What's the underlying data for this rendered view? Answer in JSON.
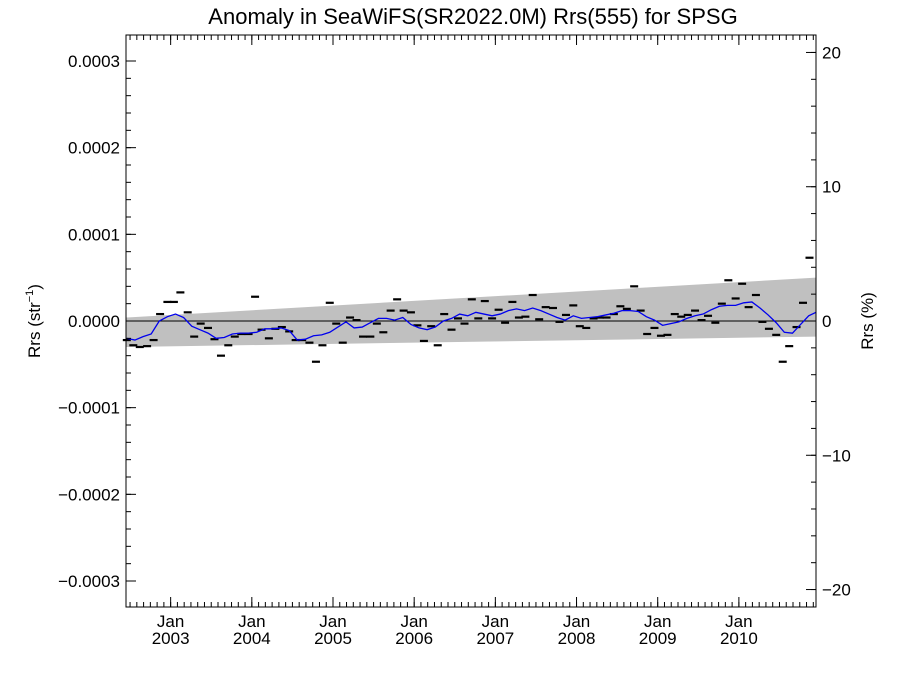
{
  "chart_data": {
    "type": "scatter",
    "title": "Anomaly in SeaWiFS(SR2022.0M) Rrs(555) for SPSG",
    "ylabel_left": {
      "base": "Rrs (str",
      "sup": "−1",
      "tail": ")"
    },
    "ylabel_right": "Rrs (%)",
    "xlim": [
      2002.45,
      2010.95
    ],
    "ylim_left": [
      -0.00033,
      0.00033
    ],
    "ylim_right": [
      -21.3,
      21.3
    ],
    "left_ticks": [
      {
        "value": 0.0003,
        "label": "0.0003"
      },
      {
        "value": 0.0002,
        "label": "0.0002"
      },
      {
        "value": 0.0001,
        "label": "0.0001"
      },
      {
        "value": 0.0,
        "label": "0.0000"
      },
      {
        "value": -0.0001,
        "label": "−0.0001"
      },
      {
        "value": -0.0002,
        "label": "−0.0002"
      },
      {
        "value": -0.0003,
        "label": "−0.0003"
      }
    ],
    "right_ticks": [
      {
        "value": 20,
        "label": "20"
      },
      {
        "value": 10,
        "label": "10"
      },
      {
        "value": 0,
        "label": "0"
      },
      {
        "value": -10,
        "label": "−10"
      },
      {
        "value": -20,
        "label": "−20"
      }
    ],
    "x_ticks": [
      {
        "value": 2003.0,
        "month": "Jan",
        "year": "2003"
      },
      {
        "value": 2004.0,
        "month": "Jan",
        "year": "2004"
      },
      {
        "value": 2005.0,
        "month": "Jan",
        "year": "2005"
      },
      {
        "value": 2006.0,
        "month": "Jan",
        "year": "2006"
      },
      {
        "value": 2007.0,
        "month": "Jan",
        "year": "2007"
      },
      {
        "value": 2008.0,
        "month": "Jan",
        "year": "2008"
      },
      {
        "value": 2009.0,
        "month": "Jan",
        "year": "2009"
      },
      {
        "value": 2010.0,
        "month": "Jan",
        "year": "2010"
      }
    ],
    "zero_line": 0.0,
    "uncertainty_band": {
      "upper": [
        [
          2002.45,
          4e-06
        ],
        [
          2010.95,
          5e-05
        ]
      ],
      "lower": [
        [
          2002.45,
          -3e-05
        ],
        [
          2010.95,
          -1.8e-05
        ]
      ]
    },
    "monthly_anomalies": [
      [
        2002.46,
        -2.2e-05
      ],
      [
        2002.54,
        -2.8e-05
      ],
      [
        2002.62,
        -3e-05
      ],
      [
        2002.71,
        -2.9e-05
      ],
      [
        2002.79,
        -2.2e-05
      ],
      [
        2002.87,
        8e-06
      ],
      [
        2002.96,
        2.2e-05
      ],
      [
        2003.04,
        2.2e-05
      ],
      [
        2003.12,
        3.3e-05
      ],
      [
        2003.21,
        1e-05
      ],
      [
        2003.29,
        -1.8e-05
      ],
      [
        2003.37,
        -3e-06
      ],
      [
        2003.46,
        -8e-06
      ],
      [
        2003.54,
        -2.1e-05
      ],
      [
        2003.62,
        -4e-05
      ],
      [
        2003.71,
        -2.8e-05
      ],
      [
        2003.79,
        -1.8e-05
      ],
      [
        2003.87,
        -1.5e-05
      ],
      [
        2003.96,
        -1.5e-05
      ],
      [
        2004.04,
        2.8e-05
      ],
      [
        2004.12,
        -1e-05
      ],
      [
        2004.21,
        -2e-05
      ],
      [
        2004.29,
        -9e-06
      ],
      [
        2004.37,
        -7e-06
      ],
      [
        2004.46,
        -1.2e-05
      ],
      [
        2004.54,
        -2.2e-05
      ],
      [
        2004.62,
        -2.2e-05
      ],
      [
        2004.71,
        -2.5e-05
      ],
      [
        2004.79,
        -4.7e-05
      ],
      [
        2004.87,
        -2.8e-05
      ],
      [
        2004.96,
        2.1e-05
      ],
      [
        2005.04,
        -3e-06
      ],
      [
        2005.12,
        -2.5e-05
      ],
      [
        2005.21,
        4e-06
      ],
      [
        2005.29,
        1e-06
      ],
      [
        2005.37,
        -1.8e-05
      ],
      [
        2005.46,
        -1.8e-05
      ],
      [
        2005.54,
        -3e-06
      ],
      [
        2005.62,
        -1.3e-05
      ],
      [
        2005.71,
        1.2e-05
      ],
      [
        2005.79,
        2.5e-05
      ],
      [
        2005.87,
        1.2e-05
      ],
      [
        2005.96,
        1e-05
      ],
      [
        2006.04,
        -5e-06
      ],
      [
        2006.12,
        -2.3e-05
      ],
      [
        2006.21,
        -6e-06
      ],
      [
        2006.29,
        -2.8e-05
      ],
      [
        2006.37,
        8e-06
      ],
      [
        2006.46,
        -1e-05
      ],
      [
        2006.54,
        3e-06
      ],
      [
        2006.62,
        -3e-06
      ],
      [
        2006.71,
        2.5e-05
      ],
      [
        2006.79,
        3e-06
      ],
      [
        2006.87,
        2.3e-05
      ],
      [
        2006.96,
        3e-06
      ],
      [
        2007.04,
        1.3e-05
      ],
      [
        2007.12,
        -2e-06
      ],
      [
        2007.21,
        2.2e-05
      ],
      [
        2007.29,
        4e-06
      ],
      [
        2007.37,
        5e-06
      ],
      [
        2007.46,
        3e-05
      ],
      [
        2007.54,
        2e-06
      ],
      [
        2007.62,
        1.6e-05
      ],
      [
        2007.71,
        1.5e-05
      ],
      [
        2007.79,
        -1e-06
      ],
      [
        2007.87,
        7e-06
      ],
      [
        2007.96,
        1.8e-05
      ],
      [
        2008.04,
        -6e-06
      ],
      [
        2008.12,
        -8e-06
      ],
      [
        2008.21,
        3e-06
      ],
      [
        2008.29,
        4e-06
      ],
      [
        2008.37,
        4e-06
      ],
      [
        2008.46,
        8e-06
      ],
      [
        2008.54,
        1.7e-05
      ],
      [
        2008.62,
        1.4e-05
      ],
      [
        2008.71,
        4e-05
      ],
      [
        2008.79,
        1.2e-05
      ],
      [
        2008.87,
        -1.5e-05
      ],
      [
        2008.96,
        -8e-06
      ],
      [
        2009.04,
        -1.7e-05
      ],
      [
        2009.12,
        -1.6e-05
      ],
      [
        2009.21,
        8e-06
      ],
      [
        2009.29,
        5e-06
      ],
      [
        2009.37,
        7e-06
      ],
      [
        2009.46,
        1.2e-05
      ],
      [
        2009.54,
        1e-06
      ],
      [
        2009.62,
        6e-06
      ],
      [
        2009.71,
        -2e-06
      ],
      [
        2009.79,
        2e-05
      ],
      [
        2009.87,
        4.7e-05
      ],
      [
        2009.96,
        2.6e-05
      ],
      [
        2010.04,
        4.3e-05
      ],
      [
        2010.12,
        1.6e-05
      ],
      [
        2010.21,
        3e-05
      ],
      [
        2010.29,
        -1e-06
      ],
      [
        2010.37,
        -9e-06
      ],
      [
        2010.46,
        -1.6e-05
      ],
      [
        2010.54,
        -4.7e-05
      ],
      [
        2010.62,
        -2.9e-05
      ],
      [
        2010.71,
        -7e-06
      ],
      [
        2010.79,
        2.1e-05
      ],
      [
        2010.87,
        7.3e-05
      ]
    ],
    "smoothed_line": [
      [
        2002.46,
        -2e-05
      ],
      [
        2002.56,
        -2.2e-05
      ],
      [
        2002.66,
        -1.8e-05
      ],
      [
        2002.76,
        -1.5e-05
      ],
      [
        2002.86,
        0.0
      ],
      [
        2002.96,
        5e-06
      ],
      [
        2003.06,
        8e-06
      ],
      [
        2003.16,
        4e-06
      ],
      [
        2003.26,
        -6e-06
      ],
      [
        2003.36,
        -1e-05
      ],
      [
        2003.46,
        -1.4e-05
      ],
      [
        2003.56,
        -2e-05
      ],
      [
        2003.66,
        -1.9e-05
      ],
      [
        2003.76,
        -1.5e-05
      ],
      [
        2003.86,
        -1.4e-05
      ],
      [
        2003.96,
        -1.4e-05
      ],
      [
        2004.06,
        -1.3e-05
      ],
      [
        2004.16,
        -9e-06
      ],
      [
        2004.26,
        -9e-06
      ],
      [
        2004.36,
        -8e-06
      ],
      [
        2004.46,
        -1.1e-05
      ],
      [
        2004.56,
        -2.2e-05
      ],
      [
        2004.66,
        -2.1e-05
      ],
      [
        2004.76,
        -1.7e-05
      ],
      [
        2004.86,
        -1.6e-05
      ],
      [
        2004.96,
        -1.3e-05
      ],
      [
        2005.06,
        -7e-06
      ],
      [
        2005.16,
        -1e-06
      ],
      [
        2005.26,
        -8e-06
      ],
      [
        2005.36,
        -7e-06
      ],
      [
        2005.46,
        -2e-06
      ],
      [
        2005.56,
        3e-06
      ],
      [
        2005.66,
        3e-06
      ],
      [
        2005.76,
        1e-06
      ],
      [
        2005.86,
        4e-06
      ],
      [
        2005.96,
        -4e-06
      ],
      [
        2006.06,
        -8e-06
      ],
      [
        2006.16,
        -1e-05
      ],
      [
        2006.26,
        -7e-06
      ],
      [
        2006.36,
        0.0
      ],
      [
        2006.46,
        3e-06
      ],
      [
        2006.56,
        8e-06
      ],
      [
        2006.66,
        6e-06
      ],
      [
        2006.76,
        1e-05
      ],
      [
        2006.86,
        8e-06
      ],
      [
        2006.96,
        6e-06
      ],
      [
        2007.06,
        8e-06
      ],
      [
        2007.16,
        1.2e-05
      ],
      [
        2007.26,
        1.4e-05
      ],
      [
        2007.36,
        1.2e-05
      ],
      [
        2007.46,
        1.5e-05
      ],
      [
        2007.56,
        1.2e-05
      ],
      [
        2007.66,
        8e-06
      ],
      [
        2007.76,
        4e-06
      ],
      [
        2007.86,
        1e-06
      ],
      [
        2007.96,
        6e-06
      ],
      [
        2008.06,
        3e-06
      ],
      [
        2008.16,
        4e-06
      ],
      [
        2008.26,
        5e-06
      ],
      [
        2008.36,
        7e-06
      ],
      [
        2008.46,
        9e-06
      ],
      [
        2008.56,
        1.2e-05
      ],
      [
        2008.66,
        1.2e-05
      ],
      [
        2008.76,
        1.1e-05
      ],
      [
        2008.86,
        5e-06
      ],
      [
        2008.96,
        1e-06
      ],
      [
        2009.06,
        -5e-06
      ],
      [
        2009.16,
        -3e-06
      ],
      [
        2009.26,
        -1e-06
      ],
      [
        2009.36,
        3e-06
      ],
      [
        2009.46,
        6e-06
      ],
      [
        2009.56,
        8e-06
      ],
      [
        2009.66,
        1.3e-05
      ],
      [
        2009.76,
        1.7e-05
      ],
      [
        2009.86,
        1.8e-05
      ],
      [
        2009.96,
        1.8e-05
      ],
      [
        2010.06,
        2.1e-05
      ],
      [
        2010.16,
        2.2e-05
      ],
      [
        2010.26,
        1.5e-05
      ],
      [
        2010.36,
        7e-06
      ],
      [
        2010.46,
        -2e-06
      ],
      [
        2010.56,
        -1.3e-05
      ],
      [
        2010.66,
        -1.4e-05
      ],
      [
        2010.76,
        -4e-06
      ],
      [
        2010.86,
        6e-06
      ],
      [
        2010.95,
        1e-05
      ]
    ],
    "colors": {
      "band": "#c0c0c0",
      "smoothed_line": "#0000ee",
      "markers": "#000000",
      "axes": "#000000"
    }
  }
}
